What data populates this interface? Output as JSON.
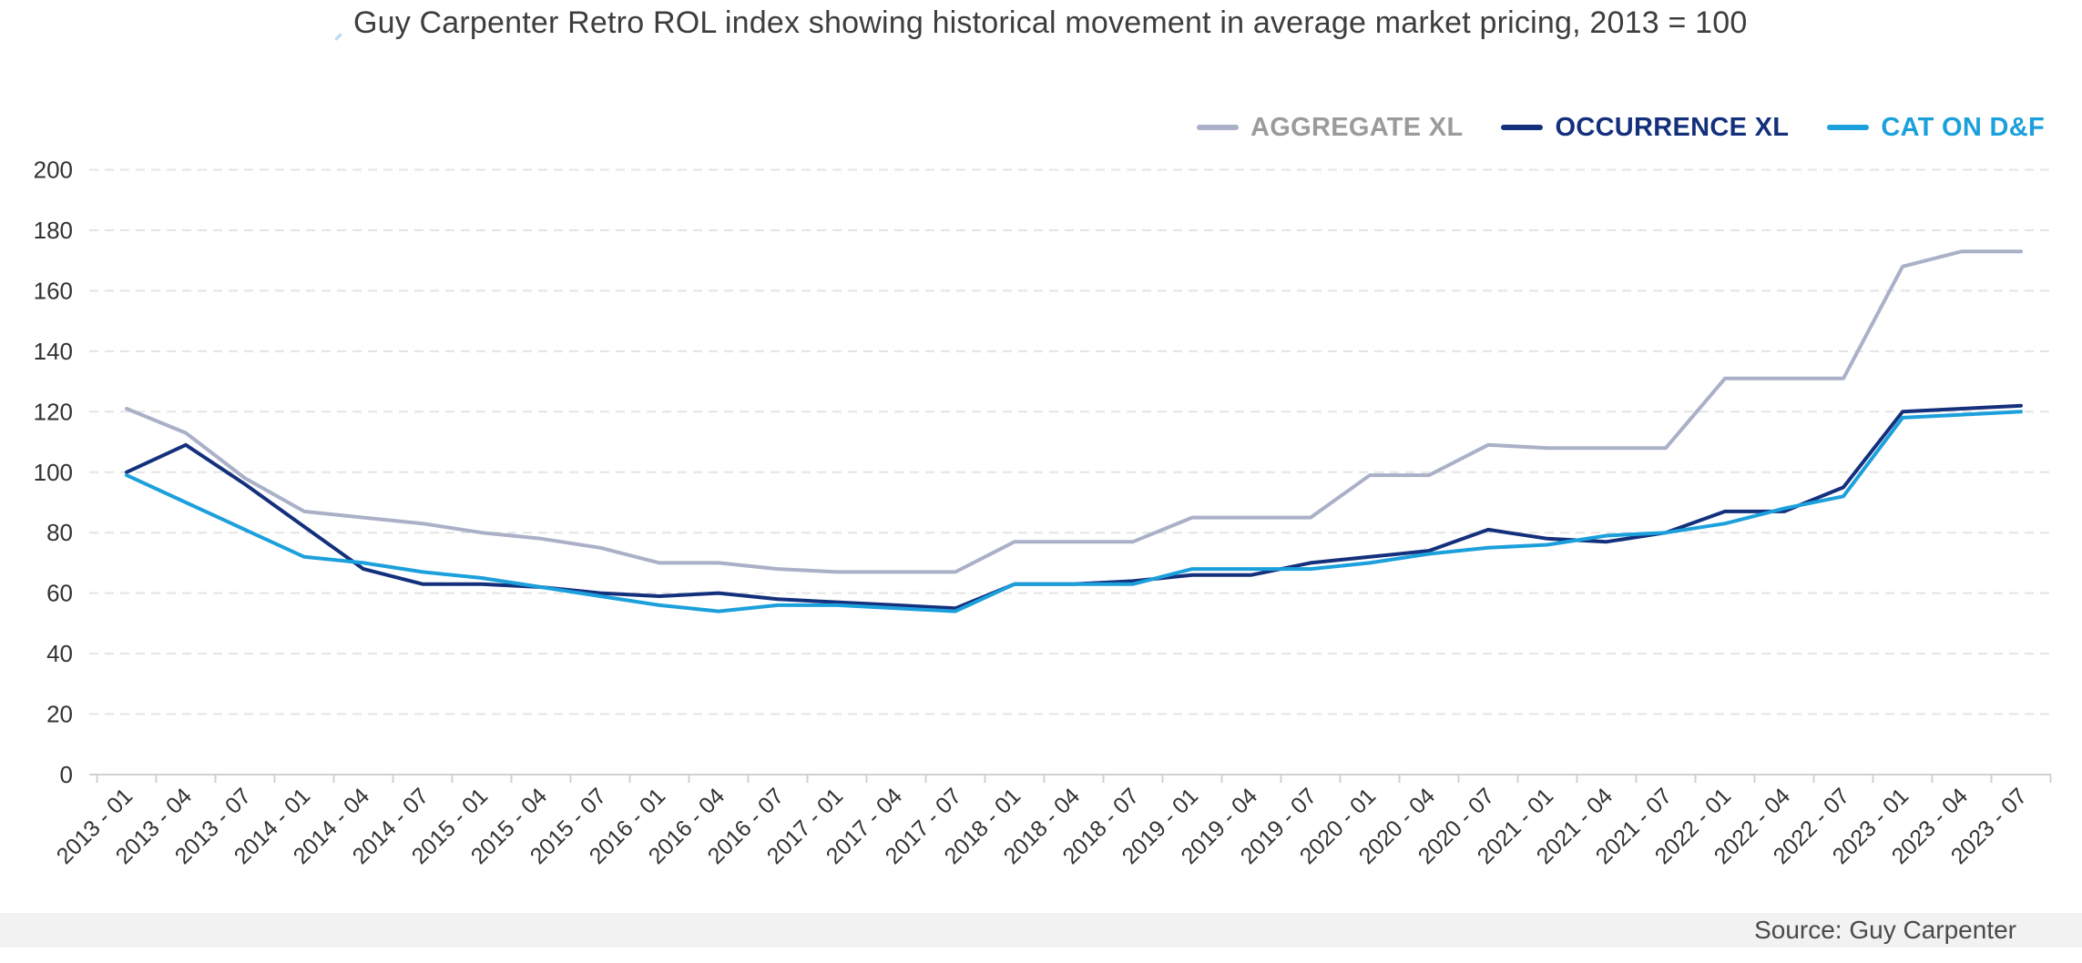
{
  "page": {
    "background": "#ffffff",
    "footer_bar_color": "#f2f2f2"
  },
  "chart_data": {
    "type": "line",
    "title": "Guy Carpenter Retro ROL index showing historical movement in average market pricing, 2013 = 100",
    "xlabel": "",
    "ylabel": "",
    "ylim": [
      0,
      200
    ],
    "ytick_step": 20,
    "grid": "horizontal dashed gridlines",
    "legend_position": "top-right",
    "x_label_rotation": -45,
    "categories": [
      "2013 - 01",
      "2013 - 04",
      "2013 - 07",
      "2014 - 01",
      "2014 - 04",
      "2014 - 07",
      "2015 - 01",
      "2015 - 04",
      "2015 - 07",
      "2016 - 01",
      "2016 - 04",
      "2016 - 07",
      "2017 - 01",
      "2017 - 04",
      "2017 - 07",
      "2018 - 01",
      "2018 - 04",
      "2018 - 07",
      "2019 - 01",
      "2019 - 04",
      "2019 - 07",
      "2020 - 01",
      "2020 - 04",
      "2020 - 07",
      "2021 - 01",
      "2021 - 04",
      "2021 - 07",
      "2022 - 01",
      "2022 - 04",
      "2022 - 07",
      "2023 - 01",
      "2023 - 04",
      "2023 - 07"
    ],
    "series": [
      {
        "name": "AGGREGATE XL",
        "color": "#A9B0C8",
        "label_color": "#9B9B9B",
        "values": [
          121,
          113,
          98,
          87,
          85,
          83,
          80,
          78,
          75,
          70,
          70,
          68,
          67,
          67,
          67,
          77,
          77,
          77,
          85,
          85,
          85,
          99,
          99,
          109,
          108,
          108,
          108,
          131,
          131,
          131,
          168,
          173,
          173
        ]
      },
      {
        "name": "OCCURRENCE XL",
        "color": "#14307C",
        "label_color": "#14307C",
        "values": [
          100,
          109,
          96,
          82,
          68,
          63,
          63,
          62,
          60,
          59,
          60,
          58,
          57,
          56,
          55,
          63,
          63,
          64,
          66,
          66,
          70,
          72,
          74,
          81,
          78,
          77,
          80,
          87,
          87,
          95,
          120,
          121,
          122
        ]
      },
      {
        "name": "CAT ON D&F",
        "color": "#1CA0DC",
        "label_color": "#1CA0DC",
        "values": [
          99,
          90,
          81,
          72,
          70,
          67,
          65,
          62,
          59,
          56,
          54,
          56,
          56,
          55,
          54,
          63,
          63,
          63,
          68,
          68,
          68,
          70,
          73,
          75,
          76,
          79,
          80,
          83,
          88,
          92,
          118,
          119,
          120
        ]
      }
    ],
    "axis_text_color": "#333333",
    "gridline_color": "#e4e4e4",
    "axis_line_color": "#d0d0d0"
  },
  "footer": {
    "source_label": "Source: Guy Carpenter"
  }
}
